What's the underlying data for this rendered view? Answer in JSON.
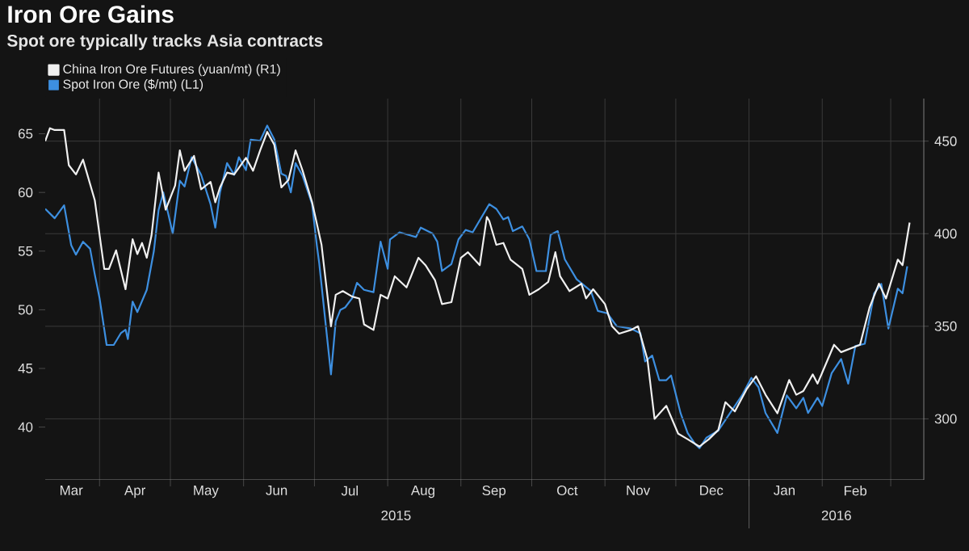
{
  "chart_data": {
    "type": "line",
    "title": "Iron Ore Gains",
    "subtitle": "Spot ore typically tracks Asia contracts",
    "annotations": [
      "2015",
      "2016"
    ],
    "xlim": [
      "2015-03-09",
      "2016-03-15"
    ],
    "xticks": [
      {
        "value": "2015-03-20",
        "label": "Mar"
      },
      {
        "value": "2015-04-01",
        "label": null
      },
      {
        "value": "2015-04-16",
        "label": "Apr"
      },
      {
        "value": "2015-05-01",
        "label": null
      },
      {
        "value": "2015-05-16",
        "label": "May"
      },
      {
        "value": "2015-06-01",
        "label": null
      },
      {
        "value": "2015-06-15",
        "label": "Jun"
      },
      {
        "value": "2015-07-01",
        "label": null
      },
      {
        "value": "2015-07-16",
        "label": "Jul"
      },
      {
        "value": "2015-08-01",
        "label": null
      },
      {
        "value": "2015-08-16",
        "label": "Aug"
      },
      {
        "value": "2015-09-01",
        "label": null
      },
      {
        "value": "2015-09-15",
        "label": "Sep"
      },
      {
        "value": "2015-10-01",
        "label": null
      },
      {
        "value": "2015-10-16",
        "label": "Oct"
      },
      {
        "value": "2015-11-01",
        "label": null
      },
      {
        "value": "2015-11-15",
        "label": "Nov"
      },
      {
        "value": "2015-12-01",
        "label": null
      },
      {
        "value": "2015-12-16",
        "label": "Dec"
      },
      {
        "value": "2016-01-01",
        "label": null
      },
      {
        "value": "2016-01-16",
        "label": "Jan"
      },
      {
        "value": "2016-02-01",
        "label": null
      },
      {
        "value": "2016-02-15",
        "label": "Feb"
      },
      {
        "value": "2016-03-01",
        "label": null
      }
    ],
    "ylim": [
      35.5,
      68
    ],
    "yticks": [
      40,
      45,
      50,
      55,
      60,
      65
    ],
    "y2lim": [
      267,
      473
    ],
    "y2ticks": [
      300,
      350,
      400,
      450
    ],
    "grid": true,
    "legend": "top left",
    "series": [
      {
        "name": "China Iron Ore Futures (yuan/mt) (R1)",
        "color": "#f0f0f0",
        "axis": "y2",
        "x": [
          "2015-03-09",
          "2015-03-11",
          "2015-03-13",
          "2015-03-17",
          "2015-03-19",
          "2015-03-22",
          "2015-03-25",
          "2015-03-30",
          "2015-04-03",
          "2015-04-05",
          "2015-04-08",
          "2015-04-12",
          "2015-04-15",
          "2015-04-17",
          "2015-04-19",
          "2015-04-21",
          "2015-04-23",
          "2015-04-26",
          "2015-04-29",
          "2015-05-03",
          "2015-05-05",
          "2015-05-07",
          "2015-05-11",
          "2015-05-14",
          "2015-05-18",
          "2015-05-20",
          "2015-05-22",
          "2015-05-25",
          "2015-05-28",
          "2015-06-02",
          "2015-06-05",
          "2015-06-08",
          "2015-06-11",
          "2015-06-14",
          "2015-06-17",
          "2015-06-20",
          "2015-06-23",
          "2015-06-26",
          "2015-06-30",
          "2015-07-04",
          "2015-07-08",
          "2015-07-10",
          "2015-07-13",
          "2015-07-17",
          "2015-07-20",
          "2015-07-22",
          "2015-07-26",
          "2015-07-29",
          "2015-08-01",
          "2015-08-04",
          "2015-08-09",
          "2015-08-14",
          "2015-08-17",
          "2015-08-21",
          "2015-08-24",
          "2015-08-28",
          "2015-09-01",
          "2015-09-04",
          "2015-09-09",
          "2015-09-12",
          "2015-09-13",
          "2015-09-16",
          "2015-09-19",
          "2015-09-22",
          "2015-09-27",
          "2015-09-30",
          "2015-10-04",
          "2015-10-08",
          "2015-10-11",
          "2015-10-13",
          "2015-10-17",
          "2015-10-22",
          "2015-10-24",
          "2015-10-27",
          "2015-11-01",
          "2015-11-04",
          "2015-11-07",
          "2015-11-12",
          "2015-11-15",
          "2015-11-19",
          "2015-11-22",
          "2015-11-27",
          "2015-12-02",
          "2015-12-06",
          "2015-12-11",
          "2015-12-15",
          "2015-12-19",
          "2015-12-22",
          "2015-12-26",
          "2015-12-31",
          "2016-01-04",
          "2016-01-08",
          "2016-01-13",
          "2016-01-18",
          "2016-01-21",
          "2016-01-24",
          "2016-01-28",
          "2016-01-30",
          "2016-02-06",
          "2016-02-09",
          "2016-02-17",
          "2016-02-21",
          "2016-02-25",
          "2016-02-28",
          "2016-03-04",
          "2016-03-06",
          "2016-03-09"
        ],
        "values": [
          450,
          457,
          456,
          456,
          437,
          432,
          440,
          418,
          381,
          381,
          391,
          370,
          397,
          389,
          395,
          387,
          399,
          433,
          413,
          426,
          445,
          434,
          442,
          424,
          428,
          417,
          425,
          433,
          432,
          441,
          434,
          445,
          455,
          448,
          425,
          429,
          445,
          434,
          417,
          394,
          350,
          367,
          369,
          366,
          365,
          351,
          348,
          367,
          365,
          377,
          371,
          387,
          383,
          375,
          362,
          363,
          387,
          390,
          383,
          409,
          407,
          394,
          395,
          386,
          381,
          367,
          370,
          374,
          390,
          377,
          369,
          373,
          365,
          370,
          362,
          350,
          346,
          348,
          350,
          332,
          300,
          307,
          292,
          289,
          285,
          289,
          294,
          309,
          304,
          316,
          323,
          313,
          303,
          321,
          313,
          315,
          324,
          319,
          340,
          336,
          340,
          360,
          373,
          365,
          386,
          383,
          406
        ]
      },
      {
        "name": "Spot Iron Ore ($/mt) (L1)",
        "color": "#3d8fe0",
        "axis": "y",
        "x": [
          "2015-03-09",
          "2015-03-13",
          "2015-03-17",
          "2015-03-20",
          "2015-03-22",
          "2015-03-25",
          "2015-03-28",
          "2015-03-30",
          "2015-04-01",
          "2015-04-04",
          "2015-04-07",
          "2015-04-10",
          "2015-04-12",
          "2015-04-13",
          "2015-04-15",
          "2015-04-17",
          "2015-04-21",
          "2015-04-24",
          "2015-04-26",
          "2015-04-28",
          "2015-05-02",
          "2015-05-05",
          "2015-05-07",
          "2015-05-10",
          "2015-05-14",
          "2015-05-18",
          "2015-05-20",
          "2015-05-22",
          "2015-05-25",
          "2015-05-28",
          "2015-05-30",
          "2015-06-02",
          "2015-06-04",
          "2015-06-08",
          "2015-06-11",
          "2015-06-14",
          "2015-06-17",
          "2015-06-19",
          "2015-06-21",
          "2015-06-23",
          "2015-06-26",
          "2015-06-30",
          "2015-07-02",
          "2015-07-03",
          "2015-07-08",
          "2015-07-10",
          "2015-07-12",
          "2015-07-14",
          "2015-07-17",
          "2015-07-19",
          "2015-07-22",
          "2015-07-26",
          "2015-07-29",
          "2015-08-01",
          "2015-08-02",
          "2015-08-06",
          "2015-08-13",
          "2015-08-15",
          "2015-08-20",
          "2015-08-22",
          "2015-08-24",
          "2015-08-28",
          "2015-08-31",
          "2015-09-03",
          "2015-09-06",
          "2015-09-13",
          "2015-09-16",
          "2015-09-19",
          "2015-09-21",
          "2015-09-23",
          "2015-09-27",
          "2015-09-30",
          "2015-10-03",
          "2015-10-07",
          "2015-10-09",
          "2015-10-12",
          "2015-10-15",
          "2015-10-20",
          "2015-10-26",
          "2015-10-29",
          "2015-11-02",
          "2015-11-06",
          "2015-11-12",
          "2015-11-16",
          "2015-11-18",
          "2015-11-21",
          "2015-11-24",
          "2015-11-27",
          "2015-11-29",
          "2015-12-03",
          "2015-12-06",
          "2015-12-09",
          "2015-12-11",
          "2015-12-14",
          "2015-12-19",
          "2015-12-24",
          "2015-12-29",
          "2016-01-02",
          "2016-01-05",
          "2016-01-08",
          "2016-01-13",
          "2016-01-17",
          "2016-01-21",
          "2016-01-24",
          "2016-01-26",
          "2016-01-30",
          "2016-02-01",
          "2016-02-05",
          "2016-02-09",
          "2016-02-12",
          "2016-02-15",
          "2016-02-19",
          "2016-02-23",
          "2016-02-26",
          "2016-02-29",
          "2016-03-04",
          "2016-03-06",
          "2016-03-08"
        ],
        "values": [
          58.6,
          57.8,
          58.9,
          55.5,
          54.7,
          55.8,
          55.2,
          53,
          51,
          47,
          47,
          48,
          48.3,
          47.5,
          50.7,
          49.8,
          51.7,
          55,
          58.5,
          60,
          56.5,
          61,
          60.5,
          63,
          61.5,
          59,
          57,
          60,
          62.5,
          61.5,
          63,
          61.9,
          64.5,
          64.4,
          65.7,
          64.5,
          61.6,
          61.4,
          60,
          62.5,
          61.4,
          59,
          55.5,
          54,
          44.5,
          49,
          50,
          50.2,
          51,
          52.3,
          51.7,
          51.5,
          55.8,
          53.5,
          56,
          56.6,
          56.2,
          57,
          56.5,
          55.8,
          53.3,
          53.9,
          56,
          56.8,
          56.6,
          59,
          58.6,
          57.7,
          57.9,
          56.7,
          57.1,
          56,
          53.3,
          53.3,
          56.4,
          56.7,
          54.3,
          52.6,
          51.6,
          49.9,
          49.7,
          48.6,
          48.4,
          48,
          45.6,
          46.1,
          44,
          44,
          44.4,
          41.2,
          39.5,
          38.6,
          38.2,
          39.1,
          39.7,
          41.2,
          42.7,
          44.2,
          43.4,
          41.2,
          39.5,
          42.7,
          41.6,
          42.5,
          41.2,
          42.5,
          41.8,
          44.6,
          45.8,
          43.7,
          46.9,
          47.1,
          51.4,
          52.2,
          48.4,
          51.8,
          51.4,
          53.7
        ]
      }
    ]
  }
}
